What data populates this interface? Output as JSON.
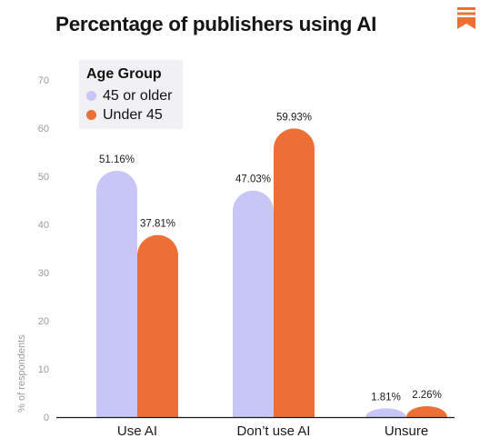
{
  "colors": {
    "older": "#c8c6f7",
    "under": "#ed6f35",
    "accent": "#ed6f35"
  },
  "logo_icon": "bookmark-stack-icon",
  "chart_data": {
    "type": "bar",
    "title": "Percentage of publishers using AI",
    "ylabel": "% of respondents",
    "xlabel": "",
    "ylim": [
      0,
      70
    ],
    "yticks": [
      0,
      10,
      20,
      30,
      40,
      50,
      60,
      70
    ],
    "grid": false,
    "legend": {
      "title": "Age Group",
      "placement": "top-left"
    },
    "categories": [
      "Use AI",
      "Don’t use AI",
      "Unsure"
    ],
    "series": [
      {
        "name": "45 or older",
        "values": [
          51.16,
          47.03,
          1.81
        ],
        "labels": [
          "51.16%",
          "47.03%",
          "1.81%"
        ],
        "color": "#c8c6f7"
      },
      {
        "name": "Under 45",
        "values": [
          37.81,
          59.93,
          2.26
        ],
        "labels": [
          "37.81%",
          "59.93%",
          "2.26%"
        ],
        "color": "#ed6f35"
      }
    ]
  }
}
